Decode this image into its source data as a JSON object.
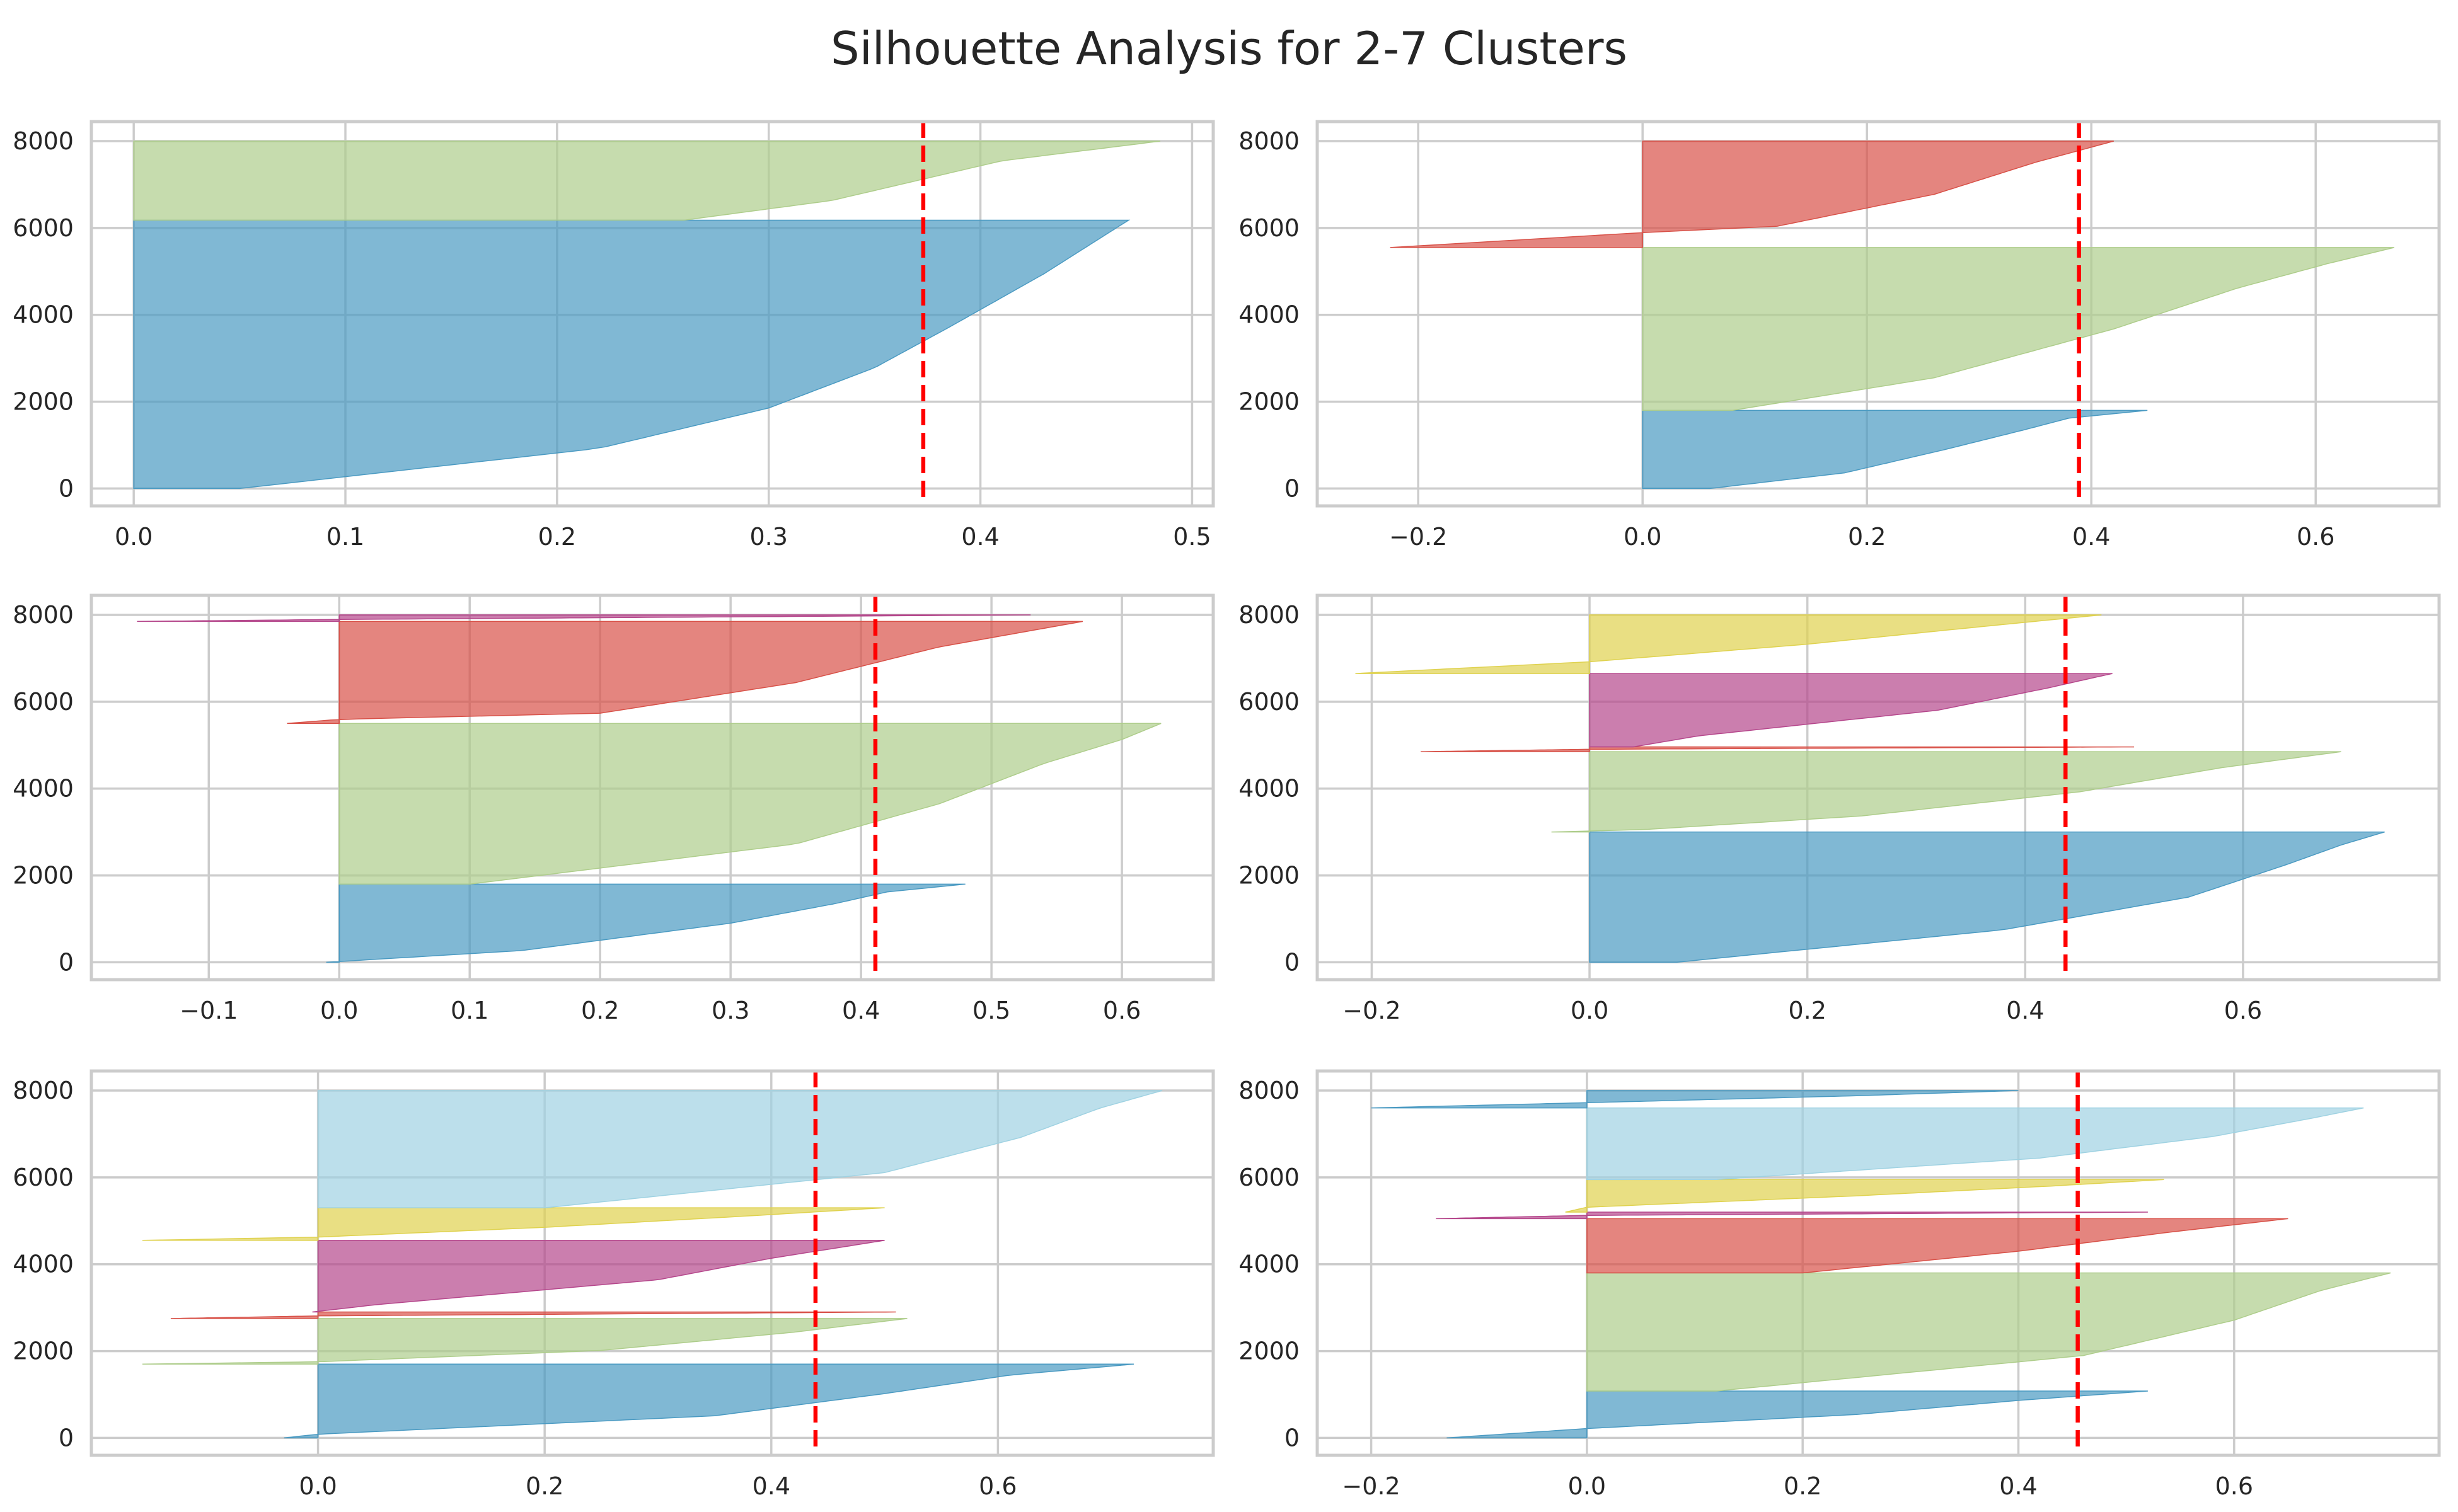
{
  "title": "Silhouette Analysis for 2-7 Clusters",
  "colors": {
    "blue": "#4a9ac2",
    "green": "#aecd8b",
    "red": "#d85148",
    "purple": "#b5478c",
    "yellow": "#dfd24f",
    "lightblue": "#9fd2e2",
    "average_line": "#ff0000",
    "grid": "#cccccc",
    "text": "#262626"
  },
  "chart_data": [
    {
      "type": "area",
      "n_clusters": 2,
      "xlim": [
        -0.02,
        0.51
      ],
      "ylim": [
        -400,
        8450
      ],
      "xticks": [
        0.0,
        0.1,
        0.2,
        0.3,
        0.4,
        0.5
      ],
      "xtick_labels": [
        "0.0",
        "0.1",
        "0.2",
        "0.3",
        "0.4",
        "0.5"
      ],
      "yticks": [
        0,
        2000,
        4000,
        6000,
        8000
      ],
      "ytick_labels": [
        "0",
        "2000",
        "4000",
        "6000",
        "8000"
      ],
      "average_silhouette": 0.373,
      "clusters": [
        {
          "color": "blue",
          "y_start": 0,
          "y_end": 6180,
          "min": 0.0,
          "max": 0.47,
          "profile": [
            [
              0,
              0.05
            ],
            [
              0.15,
              0.22
            ],
            [
              0.3,
              0.3
            ],
            [
              0.45,
              0.35
            ],
            [
              0.6,
              0.385
            ],
            [
              0.8,
              0.43
            ],
            [
              1,
              0.47
            ]
          ]
        },
        {
          "color": "green",
          "y_start": 6180,
          "y_end": 8000,
          "min": 0.0,
          "max": 0.485,
          "profile": [
            [
              0,
              0.26
            ],
            [
              0.25,
              0.33
            ],
            [
              0.5,
              0.37
            ],
            [
              0.75,
              0.41
            ],
            [
              1,
              0.485
            ]
          ]
        }
      ]
    },
    {
      "type": "area",
      "n_clusters": 3,
      "xlim": [
        -0.29,
        0.71
      ],
      "ylim": [
        -400,
        8450
      ],
      "xticks": [
        -0.2,
        0.0,
        0.2,
        0.4,
        0.6
      ],
      "xtick_labels": [
        "−0.2",
        "0.0",
        "0.2",
        "0.4",
        "0.6"
      ],
      "yticks": [
        0,
        2000,
        4000,
        6000,
        8000
      ],
      "ytick_labels": [
        "0",
        "2000",
        "4000",
        "6000",
        "8000"
      ],
      "average_silhouette": 0.389,
      "clusters": [
        {
          "color": "blue",
          "y_start": 0,
          "y_end": 1800,
          "min": 0.0,
          "max": 0.45,
          "profile": [
            [
              0,
              0.06
            ],
            [
              0.2,
              0.18
            ],
            [
              0.5,
              0.27
            ],
            [
              0.75,
              0.34
            ],
            [
              0.9,
              0.38
            ],
            [
              1,
              0.45
            ]
          ]
        },
        {
          "color": "green",
          "y_start": 1800,
          "y_end": 5550,
          "min": 0.0,
          "max": 0.67,
          "profile": [
            [
              0,
              0.08
            ],
            [
              0.2,
              0.26
            ],
            [
              0.5,
              0.42
            ],
            [
              0.75,
              0.53
            ],
            [
              0.9,
              0.61
            ],
            [
              1,
              0.67
            ]
          ]
        },
        {
          "color": "red",
          "y_start": 5550,
          "y_end": 8000,
          "min": -0.225,
          "max": 0.42,
          "profile": [
            [
              0,
              -0.225
            ],
            [
              0.14,
              0.0
            ],
            [
              0.2,
              0.12
            ],
            [
              0.5,
              0.26
            ],
            [
              0.8,
              0.35
            ],
            [
              1,
              0.42
            ]
          ]
        }
      ]
    },
    {
      "type": "area",
      "n_clusters": 4,
      "xlim": [
        -0.19,
        0.67
      ],
      "ylim": [
        -400,
        8450
      ],
      "xticks": [
        -0.1,
        0.0,
        0.1,
        0.2,
        0.3,
        0.4,
        0.5,
        0.6
      ],
      "xtick_labels": [
        "−0.1",
        "0.0",
        "0.1",
        "0.2",
        "0.3",
        "0.4",
        "0.5",
        "0.6"
      ],
      "yticks": [
        0,
        2000,
        4000,
        6000,
        8000
      ],
      "ytick_labels": [
        "0",
        "2000",
        "4000",
        "6000",
        "8000"
      ],
      "average_silhouette": 0.411,
      "clusters": [
        {
          "color": "blue",
          "y_start": 0,
          "y_end": 1800,
          "min": -0.01,
          "max": 0.48,
          "profile": [
            [
              0,
              -0.01
            ],
            [
              0.15,
              0.14
            ],
            [
              0.5,
              0.3
            ],
            [
              0.75,
              0.38
            ],
            [
              0.9,
              0.42
            ],
            [
              1,
              0.48
            ]
          ]
        },
        {
          "color": "green",
          "y_start": 1800,
          "y_end": 5500,
          "min": 0.0,
          "max": 0.63,
          "profile": [
            [
              0,
              0.1
            ],
            [
              0.25,
              0.35
            ],
            [
              0.5,
              0.46
            ],
            [
              0.75,
              0.54
            ],
            [
              0.9,
              0.6
            ],
            [
              1,
              0.63
            ]
          ]
        },
        {
          "color": "red",
          "y_start": 5500,
          "y_end": 7850,
          "min": -0.04,
          "max": 0.57,
          "profile": [
            [
              0,
              -0.04
            ],
            [
              0.04,
              0.0
            ],
            [
              0.1,
              0.2
            ],
            [
              0.4,
              0.35
            ],
            [
              0.75,
              0.46
            ],
            [
              1,
              0.57
            ]
          ]
        },
        {
          "color": "purple",
          "y_start": 7850,
          "y_end": 8000,
          "min": -0.155,
          "max": 0.53,
          "profile": [
            [
              0,
              -0.155
            ],
            [
              0.3,
              0.0
            ],
            [
              1,
              0.53
            ]
          ]
        }
      ]
    },
    {
      "type": "area",
      "n_clusters": 5,
      "xlim": [
        -0.25,
        0.78
      ],
      "ylim": [
        -400,
        8450
      ],
      "xticks": [
        -0.2,
        0.0,
        0.2,
        0.4,
        0.6
      ],
      "xtick_labels": [
        "−0.2",
        "0.0",
        "0.2",
        "0.4",
        "0.6"
      ],
      "yticks": [
        0,
        2000,
        4000,
        6000,
        8000
      ],
      "ytick_labels": [
        "0",
        "2000",
        "4000",
        "6000",
        "8000"
      ],
      "average_silhouette": 0.437,
      "clusters": [
        {
          "color": "blue",
          "y_start": 0,
          "y_end": 3000,
          "min": 0.0,
          "max": 0.73,
          "profile": [
            [
              0,
              0.08
            ],
            [
              0.25,
              0.38
            ],
            [
              0.5,
              0.55
            ],
            [
              0.75,
              0.64
            ],
            [
              0.9,
              0.69
            ],
            [
              1,
              0.73
            ]
          ]
        },
        {
          "color": "green",
          "y_start": 3000,
          "y_end": 4850,
          "min": -0.035,
          "max": 0.69,
          "profile": [
            [
              0,
              -0.035
            ],
            [
              0.03,
              0.05
            ],
            [
              0.2,
              0.25
            ],
            [
              0.5,
              0.45
            ],
            [
              0.8,
              0.58
            ],
            [
              1,
              0.69
            ]
          ]
        },
        {
          "color": "red",
          "y_start": 4850,
          "y_end": 4960,
          "min": -0.155,
          "max": 0.5,
          "profile": [
            [
              0,
              -0.155
            ],
            [
              0.5,
              0.0
            ],
            [
              1,
              0.5
            ]
          ]
        },
        {
          "color": "purple",
          "y_start": 4960,
          "y_end": 6650,
          "min": 0.0,
          "max": 0.48,
          "profile": [
            [
              0,
              0.04
            ],
            [
              0.15,
              0.1
            ],
            [
              0.5,
              0.32
            ],
            [
              0.8,
              0.42
            ],
            [
              1,
              0.48
            ]
          ]
        },
        {
          "color": "yellow",
          "y_start": 6650,
          "y_end": 8000,
          "min": -0.215,
          "max": 0.47,
          "profile": [
            [
              0,
              -0.215
            ],
            [
              0.2,
              0.0
            ],
            [
              0.5,
              0.2
            ],
            [
              0.8,
              0.36
            ],
            [
              1,
              0.47
            ]
          ]
        }
      ]
    },
    {
      "type": "area",
      "n_clusters": 6,
      "xlim": [
        -0.2,
        0.79
      ],
      "ylim": [
        -400,
        8450
      ],
      "xticks": [
        0.0,
        0.2,
        0.4,
        0.6
      ],
      "xtick_labels": [
        "0.0",
        "0.2",
        "0.4",
        "0.6"
      ],
      "yticks": [
        0,
        2000,
        4000,
        6000,
        8000
      ],
      "ytick_labels": [
        "0",
        "2000",
        "4000",
        "6000",
        "8000"
      ],
      "average_silhouette": 0.439,
      "clusters": [
        {
          "color": "blue",
          "y_start": 0,
          "y_end": 1700,
          "min": -0.03,
          "max": 0.72,
          "profile": [
            [
              0,
              -0.03
            ],
            [
              0.05,
              0.0
            ],
            [
              0.3,
              0.35
            ],
            [
              0.6,
              0.5
            ],
            [
              0.85,
              0.61
            ],
            [
              1,
              0.72
            ]
          ]
        },
        {
          "color": "green",
          "y_start": 1700,
          "y_end": 2750,
          "min": -0.155,
          "max": 0.52,
          "profile": [
            [
              0,
              -0.155
            ],
            [
              0.05,
              0.0
            ],
            [
              0.3,
              0.25
            ],
            [
              0.7,
              0.42
            ],
            [
              1,
              0.52
            ]
          ]
        },
        {
          "color": "red",
          "y_start": 2750,
          "y_end": 2900,
          "min": -0.13,
          "max": 0.51,
          "profile": [
            [
              0,
              -0.13
            ],
            [
              0.4,
              0.0
            ],
            [
              1,
              0.51
            ]
          ]
        },
        {
          "color": "purple",
          "y_start": 2900,
          "y_end": 4550,
          "min": -0.005,
          "max": 0.5,
          "profile": [
            [
              0,
              -0.005
            ],
            [
              0.1,
              0.05
            ],
            [
              0.45,
              0.3
            ],
            [
              0.75,
              0.4
            ],
            [
              1,
              0.5
            ]
          ]
        },
        {
          "color": "yellow",
          "y_start": 4550,
          "y_end": 5300,
          "min": -0.155,
          "max": 0.5,
          "profile": [
            [
              0,
              -0.155
            ],
            [
              0.1,
              0.0
            ],
            [
              0.4,
              0.2
            ],
            [
              0.75,
              0.38
            ],
            [
              1,
              0.5
            ]
          ]
        },
        {
          "color": "lightblue",
          "y_start": 5300,
          "y_end": 8000,
          "min": 0.0,
          "max": 0.745,
          "profile": [
            [
              0,
              0.2
            ],
            [
              0.3,
              0.5
            ],
            [
              0.6,
              0.62
            ],
            [
              0.85,
              0.69
            ],
            [
              1,
              0.745
            ]
          ]
        }
      ]
    },
    {
      "type": "area",
      "n_clusters": 7,
      "xlim": [
        -0.25,
        0.79
      ],
      "ylim": [
        -400,
        8450
      ],
      "xticks": [
        -0.2,
        0.0,
        0.2,
        0.4,
        0.6
      ],
      "xtick_labels": [
        "−0.2",
        "0.0",
        "0.2",
        "0.4",
        "0.6"
      ],
      "yticks": [
        0,
        2000,
        4000,
        6000,
        8000
      ],
      "ytick_labels": [
        "0",
        "2000",
        "4000",
        "6000",
        "8000"
      ],
      "average_silhouette": 0.455,
      "clusters": [
        {
          "color": "blue",
          "y_start": 0,
          "y_end": 1080,
          "min": -0.13,
          "max": 0.52,
          "profile": [
            [
              0,
              -0.13
            ],
            [
              0.2,
              0.0
            ],
            [
              0.5,
              0.25
            ],
            [
              0.8,
              0.4
            ],
            [
              1,
              0.52
            ]
          ]
        },
        {
          "color": "green",
          "y_start": 1080,
          "y_end": 3800,
          "min": 0.0,
          "max": 0.745,
          "profile": [
            [
              0,
              0.12
            ],
            [
              0.3,
              0.46
            ],
            [
              0.6,
              0.6
            ],
            [
              0.85,
              0.68
            ],
            [
              1,
              0.745
            ]
          ]
        },
        {
          "color": "red",
          "y_start": 3800,
          "y_end": 5050,
          "min": 0.0,
          "max": 0.65,
          "profile": [
            [
              0,
              0.2
            ],
            [
              0.4,
              0.4
            ],
            [
              0.75,
              0.54
            ],
            [
              1,
              0.65
            ]
          ]
        },
        {
          "color": "purple",
          "y_start": 5050,
          "y_end": 5200,
          "min": -0.14,
          "max": 0.52,
          "profile": [
            [
              0,
              -0.14
            ],
            [
              0.5,
              0.0
            ],
            [
              1,
              0.52
            ]
          ]
        },
        {
          "color": "yellow",
          "y_start": 5200,
          "y_end": 5950,
          "min": -0.02,
          "max": 0.535,
          "profile": [
            [
              0,
              -0.02
            ],
            [
              0.15,
              0.0
            ],
            [
              0.5,
              0.25
            ],
            [
              0.8,
              0.43
            ],
            [
              1,
              0.535
            ]
          ]
        },
        {
          "color": "lightblue",
          "y_start": 5950,
          "y_end": 7600,
          "min": 0.0,
          "max": 0.72,
          "profile": [
            [
              0,
              0.12
            ],
            [
              0.3,
              0.42
            ],
            [
              0.6,
              0.58
            ],
            [
              0.85,
              0.67
            ],
            [
              1,
              0.72
            ]
          ]
        },
        {
          "color": "blue",
          "y_start": 7600,
          "y_end": 8000,
          "min": -0.2,
          "max": 0.4,
          "profile": [
            [
              0,
              -0.2
            ],
            [
              0.3,
              0.0
            ],
            [
              0.7,
              0.25
            ],
            [
              1,
              0.4
            ]
          ]
        }
      ]
    }
  ]
}
